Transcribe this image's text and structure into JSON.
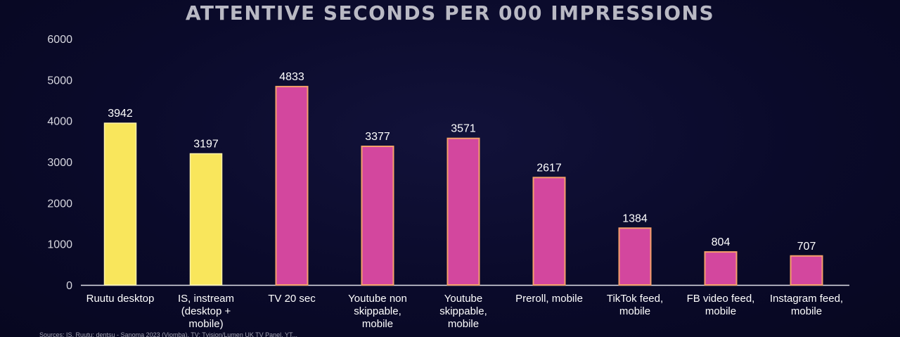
{
  "chart_data": {
    "type": "bar",
    "title": "ATTENTIVE SECONDS PER 000 IMPRESSIONS",
    "categories": [
      [
        "Ruutu desktop"
      ],
      [
        "IS, instream",
        "(desktop +",
        "mobile)"
      ],
      [
        "TV 20 sec"
      ],
      [
        "Youtube non",
        "skippable,",
        "mobile"
      ],
      [
        "Youtube",
        "skippable,",
        "mobile"
      ],
      [
        "Preroll, mobile"
      ],
      [
        "TikTok feed,",
        "mobile"
      ],
      [
        "FB video feed,",
        "mobile"
      ],
      [
        "Instagram feed,",
        "mobile"
      ]
    ],
    "values": [
      3942,
      3197,
      4833,
      3377,
      3571,
      2617,
      1384,
      804,
      707
    ],
    "bar_colors": [
      "#f9e65c",
      "#f9e65c",
      "#d3479e",
      "#d3479e",
      "#d3479e",
      "#d3479e",
      "#d3479e",
      "#d3479e",
      "#d3479e"
    ],
    "ylim": [
      0,
      6000
    ],
    "yticks": [
      0,
      1000,
      2000,
      3000,
      4000,
      5000,
      6000
    ],
    "xlabel": "",
    "ylabel": "",
    "grid": false,
    "legend": "none",
    "data_labels": true
  },
  "footer": {
    "source": "Sources: IS, Ruutu: dentsu - Sanoma 2023 (Viomba), TV: Tvision/Lumen UK TV Panel, YT..."
  }
}
